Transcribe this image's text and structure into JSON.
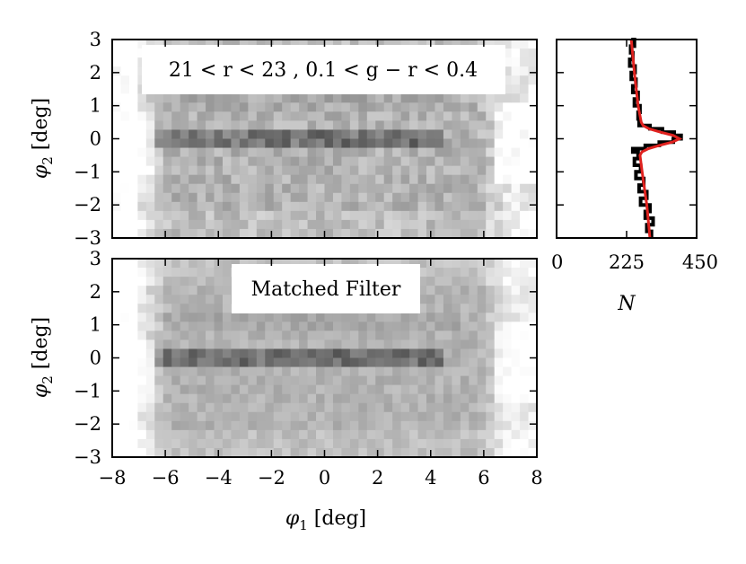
{
  "chart_data": [
    {
      "panel": "top-map",
      "type": "heatmap",
      "annotation": "21 < r < 23 , 0.1 < g − r < 0.4",
      "xlim": [
        -8,
        8
      ],
      "ylim": [
        -3,
        3
      ],
      "ylabel": {
        "main": "φ",
        "sub": "2",
        "unit": " [deg]"
      },
      "y_ticks": [
        "3",
        "2",
        "1",
        "0",
        "−1",
        "−2",
        "−3"
      ],
      "colormap": "gray_r",
      "stream_dec_deg": 0.05
    },
    {
      "panel": "bottom-map",
      "type": "heatmap",
      "annotation": "Matched Filter",
      "xlim": [
        -8,
        8
      ],
      "ylim": [
        -3,
        3
      ],
      "xlabel": {
        "main": "φ",
        "sub": "1",
        "unit": " [deg]"
      },
      "ylabel": {
        "main": "φ",
        "sub": "2",
        "unit": " [deg]"
      },
      "x_ticks": [
        "−8",
        "−6",
        "−4",
        "−2",
        "0",
        "2",
        "4",
        "6",
        "8"
      ],
      "y_ticks": [
        "3",
        "2",
        "1",
        "0",
        "−1",
        "−2",
        "−3"
      ],
      "colormap": "gray_r"
    },
    {
      "panel": "side-histogram",
      "type": "line",
      "xlabel": "N",
      "xlim": [
        0,
        450
      ],
      "ylim": [
        -3,
        3
      ],
      "x_ticks": [
        "0",
        "225",
        "450"
      ],
      "histogram_color": "#000000",
      "model_color": "#e0221f",
      "phi2": [
        -3.0,
        -2.8,
        -2.6,
        -2.4,
        -2.2,
        -2.0,
        -1.8,
        -1.6,
        -1.4,
        -1.2,
        -1.0,
        -0.8,
        -0.6,
        -0.4,
        -0.3,
        -0.2,
        -0.1,
        0.0,
        0.1,
        0.2,
        0.3,
        0.4,
        0.6,
        0.8,
        1.0,
        1.2,
        1.4,
        1.6,
        1.8,
        2.0,
        2.2,
        2.4,
        2.6,
        2.8,
        3.0
      ],
      "counts": [
        305,
        290,
        310,
        285,
        300,
        270,
        290,
        265,
        280,
        255,
        270,
        250,
        262,
        245,
        285,
        330,
        375,
        400,
        378,
        340,
        300,
        265,
        262,
        268,
        250,
        262,
        245,
        255,
        240,
        252,
        235,
        245,
        238,
        250,
        240
      ],
      "model_phi2": [
        -3.0,
        -2.0,
        -1.0,
        -0.5,
        -0.4,
        -0.3,
        -0.2,
        -0.1,
        0.0,
        0.1,
        0.2,
        0.3,
        0.4,
        0.5,
        1.0,
        2.0,
        3.0
      ],
      "model_N": [
        300,
        290,
        275,
        268,
        274,
        295,
        330,
        372,
        395,
        375,
        333,
        297,
        278,
        272,
        262,
        250,
        240
      ]
    }
  ]
}
